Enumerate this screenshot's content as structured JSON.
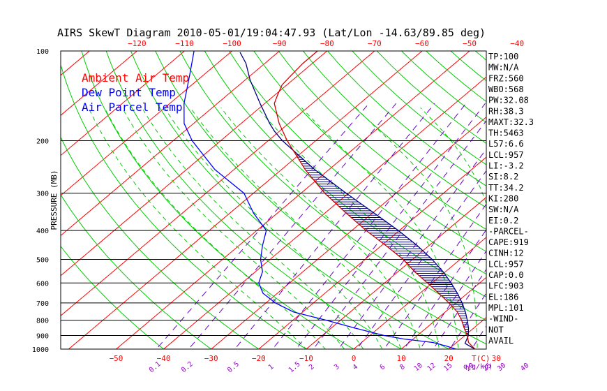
{
  "header": {
    "title": "AIRS SkewT Diagram 2010-05-01/19:04:47.93 (Lat/Lon -14.63/89.85 deg)"
  },
  "legend": [
    {
      "label": "Ambient Air Temp",
      "color": "#ff0000"
    },
    {
      "label": "Dew Point Temp",
      "color": "#0000ff"
    },
    {
      "label": "Air Parcel Temp",
      "color": "#0000ff"
    }
  ],
  "colors": {
    "ambient": "#cc0000",
    "dewpoint": "#0000ff",
    "parcel": "#000080",
    "isotherm": "#ff0000",
    "dry_adiabat": "#00cc00",
    "moist_adiabat": "#00cc00",
    "mixing_ratio": "#6600cc",
    "isobar": "#000000"
  },
  "chart_data": {
    "type": "line",
    "title": "AIRS SkewT Diagram 2010-05-01/19:04:47.93 (Lat/Lon -14.63/89.85 deg)",
    "ylabel": "PRESSURE (MB)",
    "xlabel_right": "T(C)",
    "mixing_ratio_unit": "q(g/kg)",
    "pressure_ticks": [
      100,
      200,
      300,
      400,
      500,
      600,
      700,
      800,
      900,
      1000
    ],
    "temp_ticks_top": [
      -120,
      -110,
      -100,
      -90,
      -80,
      -70,
      -60,
      -50,
      -40
    ],
    "temp_ticks_bottom": [
      -50,
      -40,
      -30,
      -20,
      -10,
      0,
      10,
      20,
      30
    ],
    "mixing_ratio_ticks": [
      "0.1",
      "0.2",
      "0.5",
      "1",
      "1.5",
      "2",
      "3",
      "4",
      "6",
      "8",
      "10",
      "12",
      "15",
      "20",
      "25",
      "30",
      "40"
    ],
    "y_scale": "log",
    "ylim": [
      1000,
      100
    ],
    "xlim_bottom": [
      -52,
      38
    ],
    "series": [
      {
        "name": "Ambient Air Temp",
        "color": "#cc0000",
        "pressure": [
          1000,
          950,
          925,
          900,
          850,
          800,
          750,
          700,
          650,
          600,
          550,
          500,
          450,
          400,
          350,
          300,
          250,
          200,
          175,
          150,
          140,
          130,
          120,
          110,
          100
        ],
        "temp": [
          25.5,
          22.5,
          21.5,
          20.5,
          18.0,
          15.5,
          12.5,
          8.5,
          4.0,
          -1.0,
          -6.5,
          -12.0,
          -19.0,
          -27.0,
          -35.5,
          -45.0,
          -55.0,
          -66.0,
          -72.0,
          -78.0,
          -79.5,
          -81.0,
          -81.5,
          -82.0,
          -82.0
        ]
      },
      {
        "name": "Dew Point Temp",
        "color": "#0000ff",
        "pressure": [
          1000,
          975,
          950,
          925,
          900,
          850,
          800,
          750,
          700,
          650,
          600,
          550,
          500,
          450,
          400,
          350,
          300,
          250,
          200,
          175,
          150,
          120,
          100
        ],
        "temp": [
          21.5,
          18.5,
          15.0,
          8.0,
          3.0,
          -5.0,
          -13.0,
          -22.0,
          -28.0,
          -33.0,
          -36.5,
          -38.5,
          -42.0,
          -45.0,
          -48.0,
          -55.0,
          -62.0,
          -74.0,
          -86.0,
          -92.0,
          -97.0,
          -103.0,
          -108.0
        ]
      },
      {
        "name": "Air Parcel Temp",
        "color": "#000080",
        "pressure": [
          1000,
          957,
          903,
          850,
          800,
          750,
          700,
          650,
          600,
          550,
          500,
          450,
          400,
          350,
          300,
          250,
          200,
          186,
          175,
          150,
          125,
          110,
          101
        ],
        "temp": [
          25.5,
          22.0,
          20.8,
          18.9,
          16.7,
          14.2,
          11.3,
          7.9,
          4.0,
          -0.5,
          -5.9,
          -12.4,
          -20.2,
          -29.6,
          -40.5,
          -53.0,
          -67.0,
          -71.0,
          -74.0,
          -81.0,
          -89.0,
          -94.0,
          -98.0
        ]
      }
    ],
    "cape_shading": {
      "from_pressure": 903,
      "to_pressure": 186,
      "between": [
        "Air Parcel Temp",
        "Ambient Air Temp"
      ]
    },
    "indices": [
      "TP:100",
      "MW:N/A",
      "FRZ:560",
      "WBO:568",
      "PW:32.08",
      "RH:38.3",
      "MAXT:32.3",
      "TH:5463",
      "L57:6.6",
      "LCL:957",
      "LI:-3.2",
      "SI:8.2",
      "TT:34.2",
      "KI:280",
      "SW:N/A",
      "EI:0.2",
      "-PARCEL-",
      "CAPE:919",
      "CINH:12",
      "LCL:957",
      "CAP:0.0",
      "LFC:903",
      "EL:186",
      "MPL:101",
      "-WIND-",
      "NOT",
      "AVAIL"
    ]
  }
}
